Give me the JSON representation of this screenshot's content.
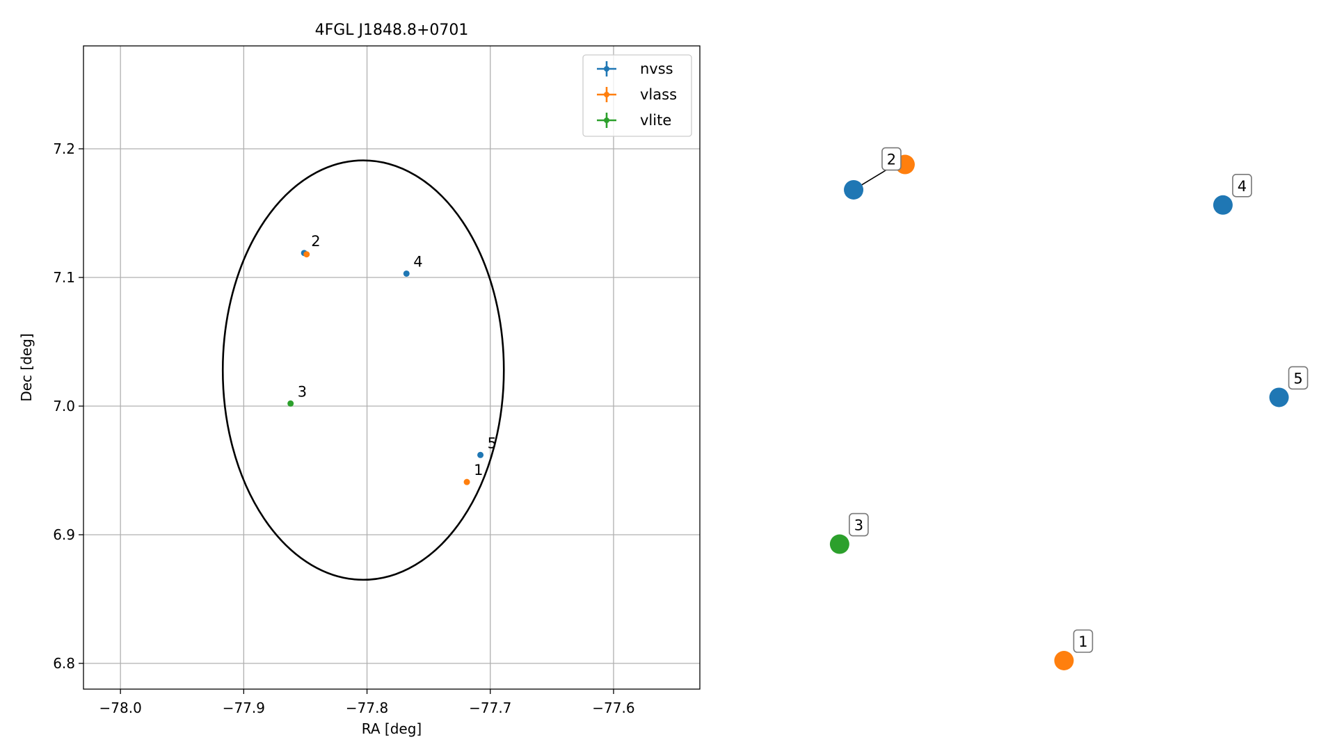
{
  "chart_data": [
    {
      "type": "scatter",
      "title": "4FGL J1848.8+0701",
      "xlabel": "RA [deg]",
      "ylabel": "Dec [deg]",
      "xlim": [
        -78.03,
        -77.53
      ],
      "ylim": [
        6.78,
        7.28
      ],
      "xticks": [
        -78.0,
        -77.9,
        -77.8,
        -77.7,
        -77.6
      ],
      "xtick_labels": [
        "−78.0",
        "−77.9",
        "−77.8",
        "−77.7",
        "−77.6"
      ],
      "yticks": [
        6.8,
        6.9,
        7.0,
        7.1,
        7.2
      ],
      "ytick_labels": [
        "6.8",
        "6.9",
        "7.0",
        "7.1",
        "7.2"
      ],
      "grid": true,
      "legend_placement": "top-right",
      "series": [
        {
          "name": "nvss",
          "color": "#1f77b4",
          "points": [
            {
              "label": "2",
              "x": -77.851,
              "y": 7.119
            },
            {
              "label": "4",
              "x": -77.768,
              "y": 7.103
            },
            {
              "label": "5",
              "x": -77.708,
              "y": 6.962
            }
          ]
        },
        {
          "name": "vlass",
          "color": "#ff7f0e",
          "points": [
            {
              "label": "2",
              "x": -77.849,
              "y": 7.118
            },
            {
              "label": "1",
              "x": -77.719,
              "y": 6.941
            }
          ]
        },
        {
          "name": "vlite",
          "color": "#2ca02c",
          "points": [
            {
              "label": "3",
              "x": -77.862,
              "y": 7.002
            }
          ]
        }
      ],
      "ellipse": {
        "center": [
          -77.803,
          7.028
        ],
        "semi_axes": [
          0.114,
          0.163
        ],
        "color": "#000000"
      }
    },
    {
      "type": "scatter",
      "title": "",
      "axes": false,
      "points": [
        {
          "label": "2",
          "color": "#1f77b4",
          "x": 0.07,
          "y": 0.93
        },
        {
          "label": "2",
          "color": "#ff7f0e",
          "x": 0.18,
          "y": 0.98
        },
        {
          "label": "4",
          "color": "#1f77b4",
          "x": 0.86,
          "y": 0.9
        },
        {
          "label": "5",
          "color": "#1f77b4",
          "x": 0.98,
          "y": 0.52
        },
        {
          "label": "3",
          "color": "#2ca02c",
          "x": 0.04,
          "y": 0.23
        },
        {
          "label": "1",
          "color": "#ff7f0e",
          "x": 0.52,
          "y": 0.0
        }
      ],
      "links": [
        [
          0,
          1
        ]
      ]
    }
  ]
}
